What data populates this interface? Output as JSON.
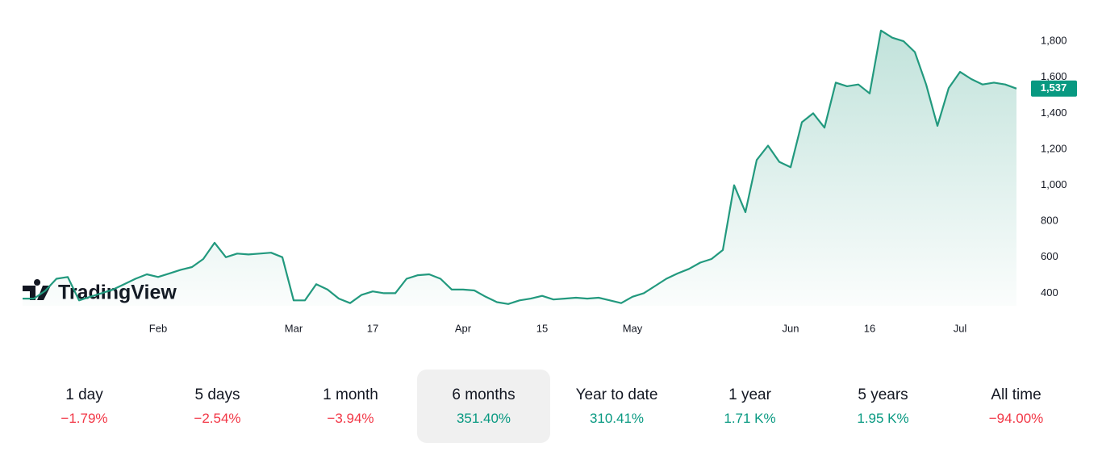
{
  "chart_data": {
    "type": "line",
    "logo": "TradingView",
    "categories": [
      null,
      null,
      null,
      null,
      null,
      null,
      null,
      null,
      null,
      null,
      null,
      null,
      "Feb",
      null,
      null,
      null,
      null,
      null,
      null,
      null,
      null,
      null,
      null,
      null,
      "Mar",
      null,
      null,
      null,
      null,
      null,
      null,
      "17",
      null,
      null,
      null,
      null,
      null,
      null,
      null,
      "Apr",
      null,
      null,
      null,
      null,
      null,
      null,
      "15",
      null,
      null,
      null,
      null,
      null,
      null,
      null,
      "May",
      null,
      null,
      null,
      null,
      null,
      null,
      null,
      null,
      null,
      null,
      null,
      null,
      null,
      "Jun",
      null,
      null,
      null,
      null,
      null,
      null,
      "16",
      null,
      null,
      null,
      null,
      null,
      null,
      null,
      "Jul",
      null,
      null,
      null,
      null,
      null
    ],
    "series": [
      {
        "color": "#22997e",
        "values": [
          370,
          370,
          413,
          480,
          490,
          360,
          380,
          400,
          420,
          450,
          480,
          505,
          490,
          510,
          530,
          545,
          590,
          680,
          600,
          620,
          615,
          620,
          625,
          600,
          360,
          360,
          450,
          420,
          370,
          345,
          390,
          410,
          400,
          400,
          480,
          500,
          505,
          480,
          420,
          420,
          415,
          380,
          350,
          340,
          360,
          370,
          385,
          365,
          370,
          375,
          370,
          375,
          360,
          345,
          380,
          400,
          440,
          480,
          510,
          535,
          570,
          590,
          640,
          1000,
          850,
          1140,
          1220,
          1130,
          1100,
          1350,
          1400,
          1320,
          1570,
          1550,
          1560,
          1510,
          1860,
          1820,
          1800,
          1740,
          1560,
          1330,
          1540,
          1630,
          1590,
          1560,
          1570,
          1560,
          1537
        ]
      }
    ],
    "last_price": {
      "value": 1537,
      "label": "1,537"
    },
    "ylim": [
      330,
      1980
    ],
    "yticks": [
      400,
      600,
      800,
      {
        "value": 1000,
        "label": "1,000"
      },
      {
        "value": 1200,
        "label": "1,200"
      },
      {
        "value": 1400,
        "label": "1,400"
      },
      {
        "value": 1600,
        "label": "1,600"
      },
      {
        "value": 1800,
        "label": "1,800"
      }
    ]
  },
  "periods": [
    {
      "label": "1 day",
      "change": "−1.79%",
      "color": "#f23645"
    },
    {
      "label": "5 days",
      "change": "−2.54%",
      "color": "#f23645"
    },
    {
      "label": "1 month",
      "change": "−3.94%",
      "color": "#f23645"
    },
    {
      "label": "6 months",
      "change": "351.40%",
      "color": "#089981"
    },
    {
      "label": "Year to date",
      "change": "310.41%",
      "color": "#089981"
    },
    {
      "label": "1 year",
      "change": "1.71 K%",
      "color": "#089981"
    },
    {
      "label": "5 years",
      "change": "1.95 K%",
      "color": "#089981"
    },
    {
      "label": "All time",
      "change": "−94.00%",
      "color": "#f23645"
    }
  ],
  "selected_period": "6 months"
}
